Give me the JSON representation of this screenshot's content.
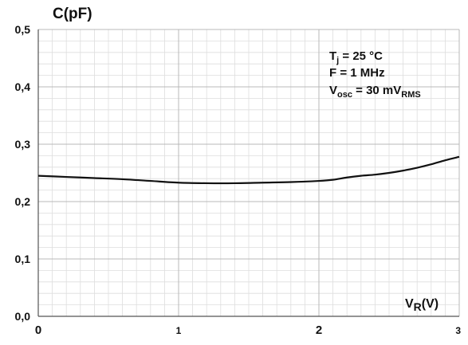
{
  "chart_data": {
    "type": "line",
    "ylabel": "C(pF)",
    "xlabel_main": "V",
    "xlabel_sub": "R",
    "xlabel_unit": "(V)",
    "xlim": [
      0,
      3
    ],
    "ylim": [
      0,
      0.5
    ],
    "x_ticks": [
      {
        "value": 0,
        "label": "0"
      },
      {
        "value": 1,
        "label": "1"
      },
      {
        "value": 2,
        "label": "2"
      },
      {
        "value": 3,
        "label": "3"
      }
    ],
    "y_ticks": [
      {
        "value": 0.0,
        "label": "0,0"
      },
      {
        "value": 0.1,
        "label": "0,1"
      },
      {
        "value": 0.2,
        "label": "0,2"
      },
      {
        "value": 0.3,
        "label": "0,3"
      },
      {
        "value": 0.4,
        "label": "0,4"
      },
      {
        "value": 0.5,
        "label": "0,5"
      }
    ],
    "grid": true,
    "annotations": [
      {
        "main": "T",
        "sub": "j",
        "rest": " = 25 °C",
        "sub2": ""
      },
      {
        "main": "F = 1 MHz",
        "sub": "",
        "rest": "",
        "sub2": ""
      },
      {
        "main": "V",
        "sub": "osc",
        "rest": " = 30 mV",
        "sub2": "RMS"
      }
    ],
    "series": [
      {
        "x": [
          0,
          0.2,
          0.4,
          0.6,
          0.8,
          1.0,
          1.2,
          1.4,
          1.6,
          1.8,
          2.0,
          2.1,
          2.2,
          2.3,
          2.4,
          2.5,
          2.6,
          2.7,
          2.8,
          2.9,
          3.0
        ],
        "y": [
          0.245,
          0.243,
          0.241,
          0.239,
          0.236,
          0.233,
          0.232,
          0.232,
          0.233,
          0.234,
          0.236,
          0.238,
          0.242,
          0.245,
          0.247,
          0.25,
          0.254,
          0.259,
          0.265,
          0.272,
          0.278
        ],
        "color": "#111111"
      }
    ]
  }
}
